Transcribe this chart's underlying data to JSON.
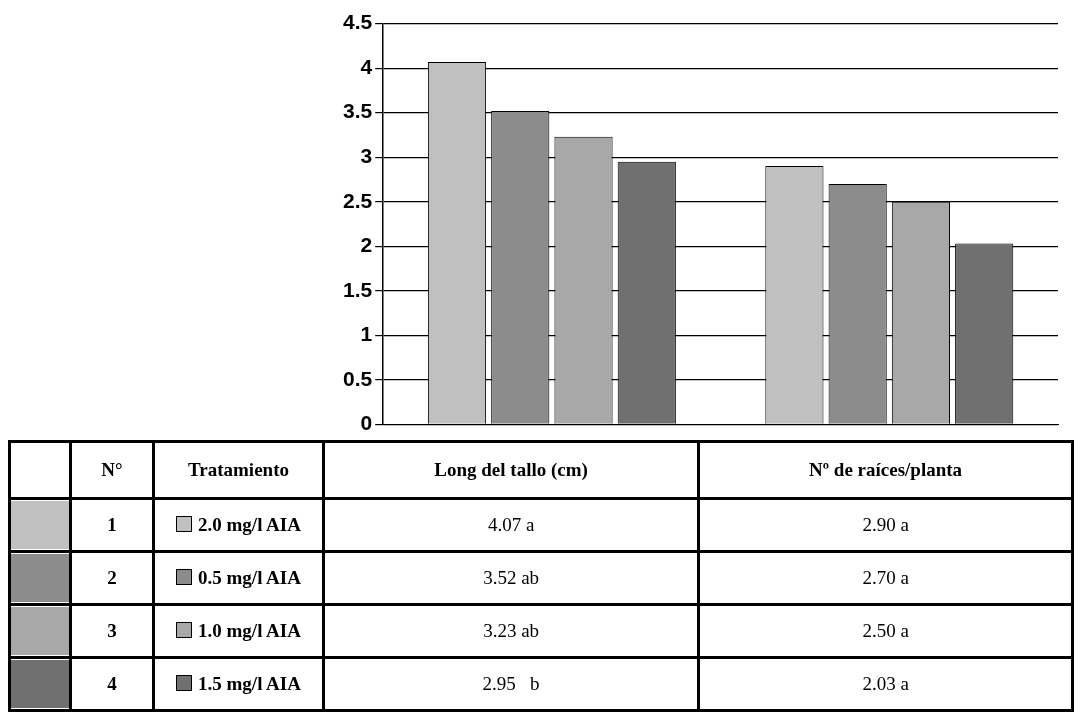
{
  "chart_data": {
    "type": "bar",
    "categories": [
      "Long del tallo (cm)",
      "Nº de raíces/planta"
    ],
    "series": [
      {
        "name": "2.0 mg/l AIA",
        "color": "#c0c0c0",
        "values": [
          4.07,
          2.9
        ],
        "value_labels": [
          "4.07 a",
          "2.90 a"
        ]
      },
      {
        "name": "0.5 mg/l AIA",
        "color": "#8c8c8c",
        "values": [
          3.52,
          2.7
        ],
        "value_labels": [
          "3.52 ab",
          "2.70 a"
        ]
      },
      {
        "name": "1.0 mg/l AIA",
        "color": "#a8a8a8",
        "values": [
          3.23,
          2.5
        ],
        "value_labels": [
          "3.23 ab",
          "2.50 a"
        ]
      },
      {
        "name": "1.5 mg/l AIA",
        "color": "#707070",
        "values": [
          2.95,
          2.03
        ],
        "value_labels": [
          "2.95   b",
          "2.03 a"
        ]
      }
    ],
    "ylim": [
      0,
      4.5
    ],
    "yticks": [
      0,
      0.5,
      1,
      1.5,
      2,
      2.5,
      3,
      3.5,
      4,
      4.5
    ],
    "grid": "y",
    "tick_labels": "y",
    "legend": "bottom",
    "annotations": [
      "N°",
      "Tratamiento",
      "1",
      "2",
      "3",
      "4"
    ]
  }
}
